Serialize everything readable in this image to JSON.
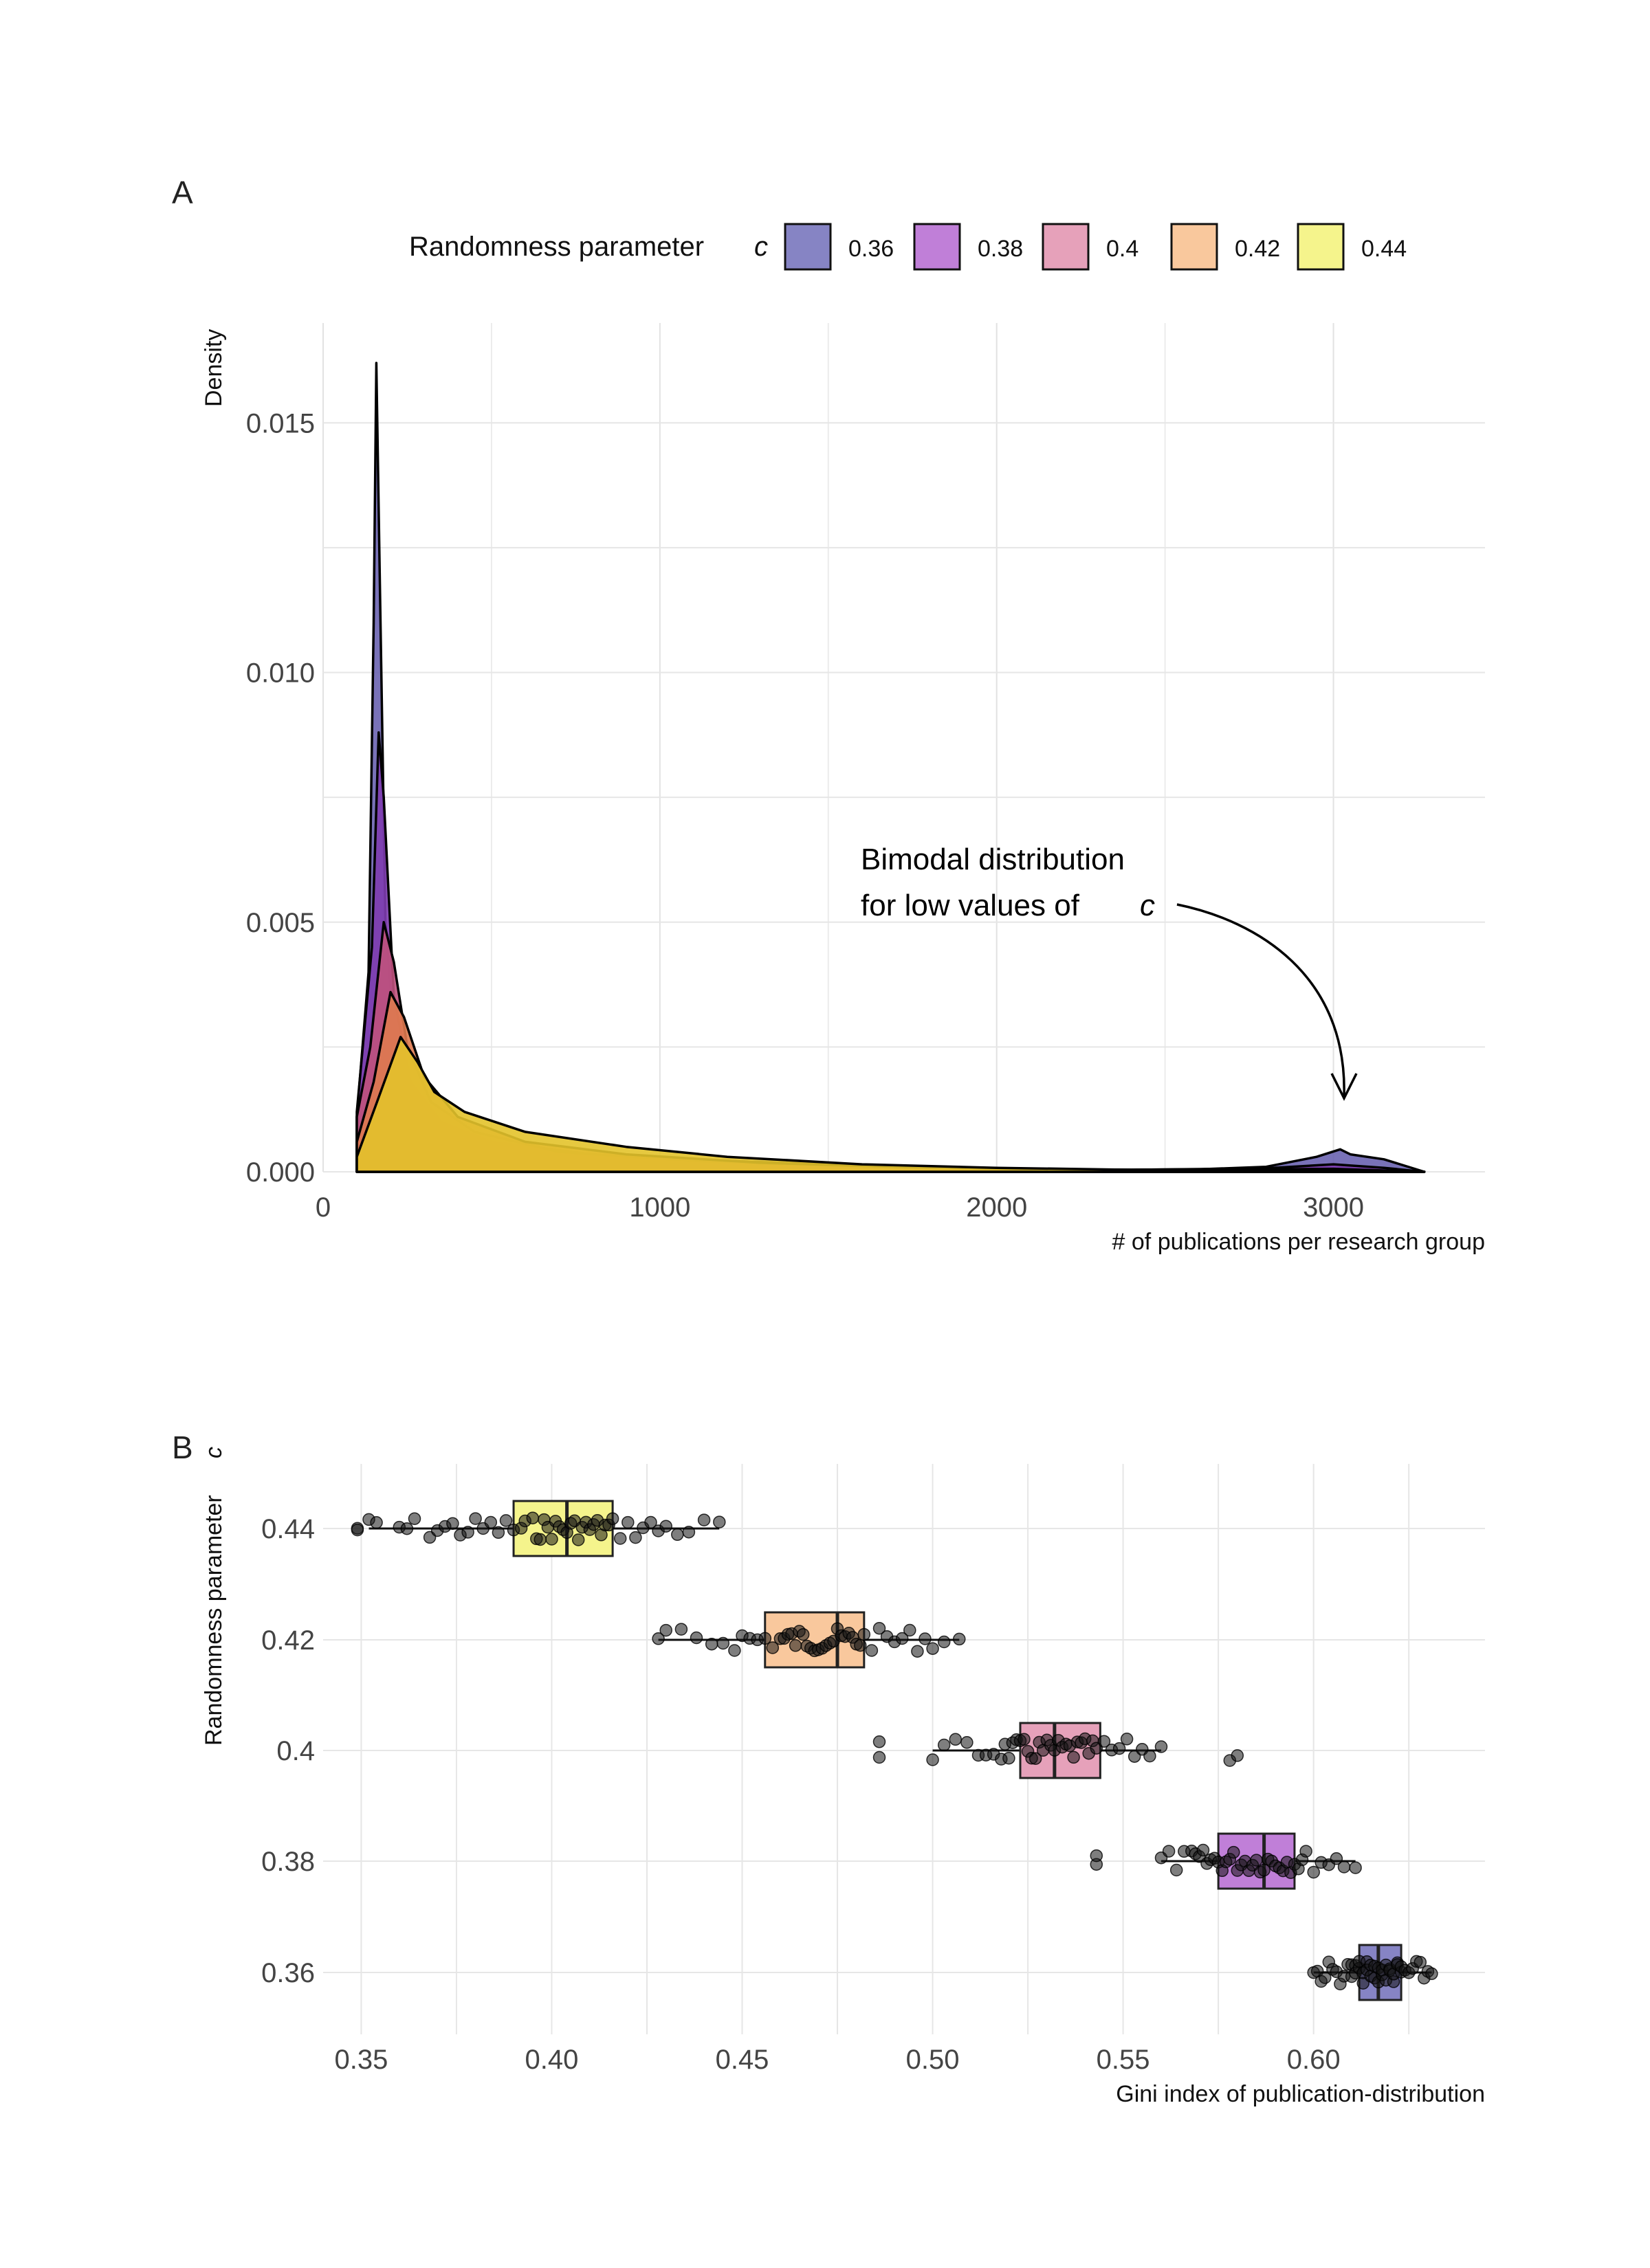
{
  "panels": {
    "a_label": "A",
    "b_label": "B"
  },
  "legend": {
    "title": "Randomness parameter",
    "title_symbol": "c",
    "items": [
      {
        "label": "0.36",
        "color": "#8684c4"
      },
      {
        "label": "0.38",
        "color": "#c07fd8"
      },
      {
        "label": "0.4",
        "color": "#e6a1ba"
      },
      {
        "label": "0.42",
        "color": "#f9c89d"
      },
      {
        "label": "0.44",
        "color": "#f5f48c"
      }
    ]
  },
  "annotation": {
    "line1": "Bimodal distribution",
    "line2": "for low values of",
    "symbol": "c"
  },
  "chart_data": [
    {
      "panel": "A",
      "type": "area",
      "subtype": "density",
      "title": "",
      "xlabel": "# of publications per research group",
      "ylabel": "Density",
      "xlim": [
        0,
        3450
      ],
      "ylim": [
        0,
        0.017
      ],
      "xticks": [
        0,
        1000,
        2000,
        3000
      ],
      "xtick_labels": [
        "0",
        "1000",
        "2000",
        "3000"
      ],
      "yticks": [
        0.0,
        0.005,
        0.01,
        0.015
      ],
      "ytick_labels": [
        "0.000",
        "0.005",
        "0.010",
        "0.015"
      ],
      "grid": true,
      "legend_position": "top",
      "series": [
        {
          "name": "0.36",
          "fill": "#6a63b0",
          "points": [
            [
              100,
              0.0011
            ],
            [
              135,
              0.004
            ],
            [
              150,
              0.011
            ],
            [
              158,
              0.0162
            ],
            [
              168,
              0.012
            ],
            [
              185,
              0.005
            ],
            [
              215,
              0.0024
            ],
            [
              260,
              0.0014
            ],
            [
              350,
              0.0008
            ],
            [
              500,
              0.0005
            ],
            [
              800,
              0.0003
            ],
            [
              1200,
              0.00022
            ],
            [
              1600,
              0.00012
            ],
            [
              2000,
              6e-05
            ],
            [
              2300,
              4e-05
            ],
            [
              2600,
              5e-05
            ],
            [
              2800,
              0.0001
            ],
            [
              2950,
              0.0003
            ],
            [
              3020,
              0.00045
            ],
            [
              3050,
              0.00035
            ],
            [
              3150,
              0.00025
            ],
            [
              3270,
              0.0
            ]
          ]
        },
        {
          "name": "0.38",
          "fill": "#7e3cb0",
          "points": [
            [
              100,
              0.0012
            ],
            [
              145,
              0.0045
            ],
            [
              165,
              0.0088
            ],
            [
              180,
              0.0075
            ],
            [
              210,
              0.0035
            ],
            [
              260,
              0.0018
            ],
            [
              350,
              0.001
            ],
            [
              500,
              0.0006
            ],
            [
              800,
              0.00035
            ],
            [
              1200,
              0.00022
            ],
            [
              1600,
              0.00012
            ],
            [
              2000,
              6e-05
            ],
            [
              2400,
              4e-05
            ],
            [
              2800,
              7e-05
            ],
            [
              3000,
              0.00015
            ],
            [
              3150,
              8e-05
            ],
            [
              3270,
              0.0
            ]
          ]
        },
        {
          "name": "0.4",
          "fill": "#c0527d",
          "points": [
            [
              100,
              0.0011
            ],
            [
              140,
              0.0025
            ],
            [
              180,
              0.005
            ],
            [
              210,
              0.0042
            ],
            [
              250,
              0.0025
            ],
            [
              320,
              0.0014
            ],
            [
              450,
              0.0008
            ],
            [
              700,
              0.0004
            ],
            [
              1100,
              0.00022
            ],
            [
              1500,
              0.00012
            ],
            [
              2000,
              5e-05
            ],
            [
              2500,
              3e-05
            ],
            [
              3000,
              6e-05
            ],
            [
              3270,
              0.0
            ]
          ]
        },
        {
          "name": "0.42",
          "fill": "#df7a4f",
          "points": [
            [
              100,
              0.0006
            ],
            [
              150,
              0.0018
            ],
            [
              200,
              0.0036
            ],
            [
              240,
              0.0031
            ],
            [
              300,
              0.0019
            ],
            [
              400,
              0.0011
            ],
            [
              600,
              0.0006
            ],
            [
              900,
              0.00035
            ],
            [
              1300,
              0.00018
            ],
            [
              1700,
              0.0001
            ],
            [
              2100,
              5e-05
            ],
            [
              2600,
              3e-05
            ],
            [
              3100,
              2e-05
            ],
            [
              3270,
              0.0
            ]
          ]
        },
        {
          "name": "0.44",
          "fill": "#e3c32b",
          "points": [
            [
              100,
              0.0003
            ],
            [
              160,
              0.0014
            ],
            [
              230,
              0.0027
            ],
            [
              280,
              0.0022
            ],
            [
              330,
              0.0016
            ],
            [
              420,
              0.0012
            ],
            [
              600,
              0.0008
            ],
            [
              900,
              0.0005
            ],
            [
              1200,
              0.0003
            ],
            [
              1600,
              0.00015
            ],
            [
              2000,
              8e-05
            ],
            [
              2400,
              4e-05
            ],
            [
              2900,
              2e-05
            ],
            [
              3270,
              0.0
            ]
          ]
        }
      ]
    },
    {
      "panel": "B",
      "type": "scatter",
      "subtype": "horizontal boxplot with jittered points",
      "title": "",
      "xlabel": "Gini index of publication-distribution",
      "ylabel": "Randomness parameter",
      "ylabel_symbol": "c",
      "xlim": [
        0.34,
        0.645
      ],
      "xticks": [
        0.35,
        0.4,
        0.45,
        0.5,
        0.55,
        0.6
      ],
      "xtick_labels": [
        "0.35",
        "0.40",
        "0.45",
        "0.50",
        "0.55",
        "0.60"
      ],
      "categories": [
        "0.44",
        "0.42",
        "0.4",
        "0.38",
        "0.36"
      ],
      "grid": true,
      "boxes": [
        {
          "category": "0.44",
          "fill": "#f5f48c",
          "whisker_low": 0.352,
          "q1": 0.39,
          "median": 0.404,
          "q3": 0.416,
          "whisker_high": 0.444,
          "outliers": [
            0.349,
            0.349
          ]
        },
        {
          "category": "0.42",
          "fill": "#f9c89d",
          "whisker_low": 0.428,
          "q1": 0.456,
          "median": 0.475,
          "q3": 0.482,
          "whisker_high": 0.507,
          "outliers": []
        },
        {
          "category": "0.4",
          "fill": "#e6a1ba",
          "whisker_low": 0.5,
          "q1": 0.523,
          "median": 0.532,
          "q3": 0.544,
          "whisker_high": 0.56,
          "outliers": [
            0.486,
            0.486,
            0.578,
            0.58
          ]
        },
        {
          "category": "0.38",
          "fill": "#c07fd8",
          "whisker_low": 0.56,
          "q1": 0.575,
          "median": 0.587,
          "q3": 0.595,
          "whisker_high": 0.611,
          "outliers": [
            0.543,
            0.543
          ]
        },
        {
          "category": "0.36",
          "fill": "#8684c4",
          "whisker_low": 0.6,
          "q1": 0.612,
          "median": 0.617,
          "q3": 0.623,
          "whisker_high": 0.631,
          "outliers": []
        }
      ],
      "points": [
        {
          "category": "0.44",
          "x": [
            0.349,
            0.349,
            0.352,
            0.354,
            0.36,
            0.362,
            0.364,
            0.368,
            0.37,
            0.372,
            0.374,
            0.376,
            0.378,
            0.38,
            0.382,
            0.384,
            0.386,
            0.388,
            0.39,
            0.392,
            0.393,
            0.395,
            0.396,
            0.397,
            0.398,
            0.399,
            0.4,
            0.401,
            0.402,
            0.403,
            0.404,
            0.405,
            0.406,
            0.407,
            0.408,
            0.409,
            0.41,
            0.411,
            0.412,
            0.413,
            0.414,
            0.415,
            0.416,
            0.418,
            0.42,
            0.422,
            0.424,
            0.426,
            0.428,
            0.43,
            0.433,
            0.436,
            0.44,
            0.444
          ]
        },
        {
          "category": "0.42",
          "x": [
            0.428,
            0.43,
            0.434,
            0.438,
            0.442,
            0.445,
            0.448,
            0.45,
            0.452,
            0.454,
            0.456,
            0.458,
            0.46,
            0.461,
            0.462,
            0.463,
            0.464,
            0.465,
            0.466,
            0.467,
            0.468,
            0.469,
            0.47,
            0.471,
            0.472,
            0.473,
            0.474,
            0.475,
            0.476,
            0.477,
            0.478,
            0.479,
            0.48,
            0.481,
            0.482,
            0.484,
            0.486,
            0.488,
            0.49,
            0.492,
            0.494,
            0.496,
            0.498,
            0.5,
            0.503,
            0.507
          ]
        },
        {
          "category": "0.4",
          "x": [
            0.486,
            0.486,
            0.5,
            0.503,
            0.506,
            0.509,
            0.512,
            0.514,
            0.516,
            0.518,
            0.519,
            0.52,
            0.521,
            0.522,
            0.523,
            0.524,
            0.525,
            0.526,
            0.527,
            0.528,
            0.529,
            0.53,
            0.531,
            0.532,
            0.533,
            0.534,
            0.535,
            0.536,
            0.537,
            0.538,
            0.539,
            0.54,
            0.541,
            0.542,
            0.543,
            0.545,
            0.547,
            0.549,
            0.551,
            0.553,
            0.555,
            0.557,
            0.56,
            0.578,
            0.58
          ]
        },
        {
          "category": "0.38",
          "x": [
            0.543,
            0.543,
            0.56,
            0.562,
            0.564,
            0.566,
            0.568,
            0.569,
            0.57,
            0.571,
            0.572,
            0.573,
            0.574,
            0.575,
            0.576,
            0.577,
            0.578,
            0.579,
            0.58,
            0.581,
            0.582,
            0.583,
            0.584,
            0.585,
            0.586,
            0.587,
            0.588,
            0.589,
            0.59,
            0.591,
            0.592,
            0.593,
            0.594,
            0.595,
            0.596,
            0.597,
            0.598,
            0.6,
            0.602,
            0.604,
            0.606,
            0.608,
            0.611
          ]
        },
        {
          "category": "0.36",
          "x": [
            0.6,
            0.601,
            0.602,
            0.603,
            0.604,
            0.605,
            0.606,
            0.607,
            0.608,
            0.609,
            0.61,
            0.61,
            0.611,
            0.611,
            0.612,
            0.612,
            0.613,
            0.613,
            0.614,
            0.614,
            0.615,
            0.615,
            0.616,
            0.616,
            0.617,
            0.617,
            0.618,
            0.618,
            0.619,
            0.619,
            0.62,
            0.62,
            0.621,
            0.621,
            0.622,
            0.622,
            0.623,
            0.623,
            0.624,
            0.625,
            0.626,
            0.627,
            0.628,
            0.629,
            0.63,
            0.631
          ]
        }
      ]
    }
  ]
}
